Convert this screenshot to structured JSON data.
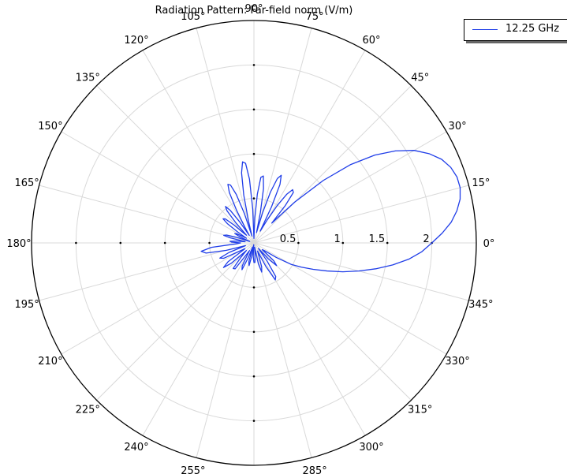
{
  "chart_data": {
    "type": "line",
    "subtype": "polar",
    "title": "Radiation Pattern: Far-field norm (V/m)",
    "angle_unit": "degrees",
    "angle_ticks": [
      0,
      15,
      30,
      45,
      60,
      75,
      90,
      105,
      120,
      135,
      150,
      165,
      180,
      195,
      210,
      225,
      240,
      255,
      270,
      285,
      300,
      315,
      330,
      345
    ],
    "angle_tick_labels": [
      "0°",
      "15°",
      "30°",
      "45°",
      "60°",
      "75°",
      "90°",
      "105°",
      "120°",
      "135°",
      "150°",
      "165°",
      "180°",
      "195°",
      "210°",
      "225°",
      "240°",
      "255°",
      "270°",
      "285°",
      "300°",
      "315°",
      "330°",
      "345°"
    ],
    "radial_ticks": [
      0.5,
      1,
      1.5,
      2
    ],
    "radial_tick_labels": [
      "0.5",
      "1",
      "1.5",
      "2"
    ],
    "rlim": [
      0,
      2.5
    ],
    "grid": true,
    "legend_position": "top-right",
    "series": [
      {
        "name": "12.25 GHz",
        "color": "#1f3de8",
        "theta": [
          0,
          3,
          6,
          9,
          12,
          15,
          18,
          21,
          24,
          27,
          30,
          33,
          36,
          39,
          42,
          45,
          48,
          50,
          52,
          54,
          56,
          58,
          60,
          62,
          64,
          66,
          68,
          70,
          72,
          74,
          76,
          78,
          80,
          82,
          84,
          86,
          88,
          90,
          92,
          94,
          96,
          98,
          100,
          102,
          104,
          106,
          108,
          110,
          112,
          114,
          116,
          118,
          120,
          122,
          124,
          126,
          128,
          130,
          132,
          134,
          136,
          138,
          140,
          142,
          144,
          146,
          148,
          150,
          152,
          154,
          156,
          158,
          160,
          162,
          164,
          166,
          168,
          170,
          172,
          174,
          176,
          178,
          180,
          183,
          186,
          189,
          192,
          195,
          198,
          201,
          204,
          207,
          210,
          213,
          216,
          219,
          222,
          225,
          228,
          231,
          234,
          237,
          240,
          243,
          246,
          249,
          252,
          255,
          258,
          261,
          264,
          267,
          270,
          273,
          276,
          279,
          282,
          285,
          288,
          291,
          294,
          297,
          300,
          303,
          306,
          309,
          312,
          315,
          318,
          321,
          324,
          327,
          330,
          333,
          336,
          339,
          342,
          345,
          348,
          351,
          354,
          357,
          360
        ],
        "r": [
          2.0,
          2.12,
          2.23,
          2.31,
          2.37,
          2.4,
          2.4,
          2.37,
          2.31,
          2.21,
          2.08,
          1.9,
          1.68,
          1.4,
          1.05,
          0.65,
          0.3,
          0.55,
          0.72,
          0.74,
          0.66,
          0.5,
          0.3,
          0.15,
          0.45,
          0.72,
          0.82,
          0.77,
          0.6,
          0.35,
          0.12,
          0.35,
          0.62,
          0.76,
          0.74,
          0.55,
          0.28,
          0.05,
          0.38,
          0.72,
          0.9,
          0.92,
          0.8,
          0.55,
          0.25,
          0.08,
          0.35,
          0.58,
          0.7,
          0.72,
          0.63,
          0.42,
          0.2,
          0.1,
          0.28,
          0.45,
          0.52,
          0.47,
          0.3,
          0.12,
          0.15,
          0.3,
          0.42,
          0.44,
          0.37,
          0.22,
          0.1,
          0.15,
          0.22,
          0.24,
          0.18,
          0.1,
          0.05,
          0.2,
          0.32,
          0.35,
          0.27,
          0.14,
          0.1,
          0.2,
          0.27,
          0.25,
          0.15,
          0.2,
          0.48,
          0.6,
          0.55,
          0.32,
          0.1,
          0.3,
          0.42,
          0.38,
          0.18,
          0.12,
          0.36,
          0.44,
          0.34,
          0.12,
          0.22,
          0.37,
          0.36,
          0.16,
          0.1,
          0.29,
          0.33,
          0.18,
          0.05,
          0.22,
          0.26,
          0.14,
          0.02,
          0.15,
          0.22,
          0.22,
          0.12,
          0.05,
          0.24,
          0.34,
          0.28,
          0.15,
          0.1,
          0.3,
          0.48,
          0.45,
          0.25,
          0.08,
          0.24,
          0.36,
          0.3,
          0.12,
          0.15,
          0.3,
          0.48,
          0.6,
          0.73,
          0.88,
          1.05,
          1.22,
          1.4,
          1.58,
          1.75,
          1.89,
          2.0
        ]
      }
    ]
  }
}
